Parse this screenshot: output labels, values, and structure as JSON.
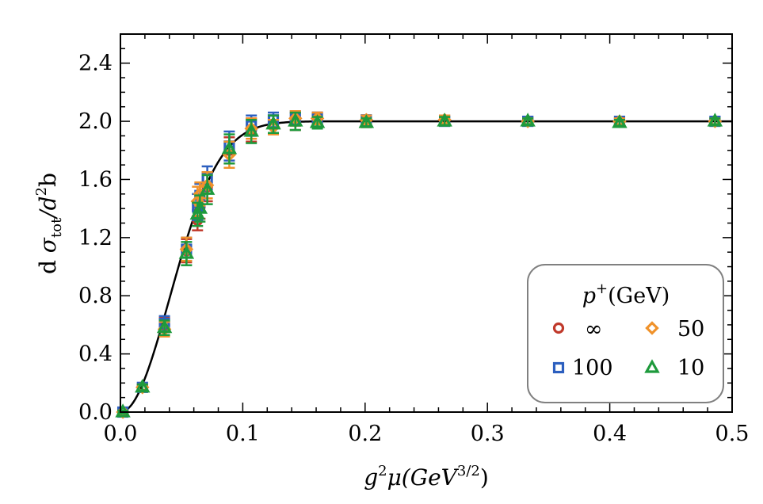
{
  "chart_data": {
    "type": "scatter",
    "xlabel": {
      "base": "g",
      "sup1": "2",
      "mid": "μ(GeV",
      "sup2": "3/2",
      "end": ")"
    },
    "ylabel": {
      "pre": "d ",
      "sigma": "σ",
      "sub": "tot",
      "slash": "/",
      "d": "d",
      "sup": "2",
      "post": "b"
    },
    "xlim": [
      0.0,
      0.5
    ],
    "ylim": [
      0.0,
      2.6
    ],
    "x_ticks": [
      0.0,
      0.1,
      0.2,
      0.3,
      0.4,
      0.5
    ],
    "x_tick_labels": [
      "0.0",
      "0.1",
      "0.2",
      "0.3",
      "0.4",
      "0.5"
    ],
    "y_ticks": [
      0.0,
      0.4,
      0.8,
      1.2,
      1.6,
      2.0,
      2.4
    ],
    "y_tick_labels": [
      "0.0",
      "0.4",
      "0.8",
      "1.2",
      "1.6",
      "2.0",
      "2.4"
    ],
    "grid": false,
    "legend": {
      "placement": "lower-right",
      "title": {
        "p": "p",
        "sup": "+",
        "rest": "(GeV)"
      },
      "entries": [
        {
          "label": "∞",
          "series": 0
        },
        {
          "label": "50",
          "series": 2
        },
        {
          "label": "100",
          "series": 1
        },
        {
          "label": "10",
          "series": 3
        }
      ]
    },
    "fit_curve": {
      "type": "gaussian-saturation",
      "saturation": 2.0,
      "scale": 0.057,
      "color": "#000000"
    },
    "series": [
      {
        "name": "∞",
        "marker": "circle",
        "color": "#c0392b",
        "points": [
          [
            0.002,
            0.0,
            0.01
          ],
          [
            0.018,
            0.17,
            0.02
          ],
          [
            0.036,
            0.6,
            0.05
          ],
          [
            0.054,
            1.11,
            0.08
          ],
          [
            0.063,
            1.32,
            0.07
          ],
          [
            0.065,
            1.41,
            0.08
          ],
          [
            0.071,
            1.55,
            0.1
          ],
          [
            0.089,
            1.8,
            0.09
          ],
          [
            0.107,
            1.94,
            0.08
          ],
          [
            0.125,
            1.98,
            0.06
          ],
          [
            0.143,
            2.0,
            0.06
          ],
          [
            0.161,
            2.01,
            0.05
          ],
          [
            0.201,
            2.0,
            0.04
          ],
          [
            0.265,
            2.01,
            0.03
          ],
          [
            0.333,
            2.0,
            0.03
          ],
          [
            0.408,
            2.0,
            0.02
          ],
          [
            0.486,
            2.0,
            0.02
          ]
        ]
      },
      {
        "name": "100",
        "marker": "square",
        "color": "#2c5fbf",
        "points": [
          [
            0.002,
            0.0,
            0.01
          ],
          [
            0.018,
            0.17,
            0.02
          ],
          [
            0.036,
            0.61,
            0.05
          ],
          [
            0.054,
            1.12,
            0.08
          ],
          [
            0.063,
            1.41,
            0.09
          ],
          [
            0.065,
            1.49,
            0.08
          ],
          [
            0.071,
            1.61,
            0.08
          ],
          [
            0.089,
            1.83,
            0.1
          ],
          [
            0.107,
            1.97,
            0.07
          ],
          [
            0.125,
            2.01,
            0.05
          ],
          [
            0.143,
            2.02,
            0.05
          ],
          [
            0.161,
            2.02,
            0.04
          ],
          [
            0.201,
            2.01,
            0.03
          ],
          [
            0.265,
            2.0,
            0.03
          ],
          [
            0.333,
            2.0,
            0.02
          ],
          [
            0.408,
            2.0,
            0.02
          ],
          [
            0.486,
            2.0,
            0.02
          ]
        ]
      },
      {
        "name": "50",
        "marker": "diamond",
        "color": "#f0922b",
        "points": [
          [
            0.002,
            0.0,
            0.01
          ],
          [
            0.018,
            0.17,
            0.02
          ],
          [
            0.036,
            0.57,
            0.05
          ],
          [
            0.054,
            1.12,
            0.08
          ],
          [
            0.063,
            1.45,
            0.1
          ],
          [
            0.065,
            1.5,
            0.08
          ],
          [
            0.071,
            1.56,
            0.09
          ],
          [
            0.089,
            1.77,
            0.09
          ],
          [
            0.107,
            1.95,
            0.07
          ],
          [
            0.125,
            1.96,
            0.05
          ],
          [
            0.143,
            2.02,
            0.05
          ],
          [
            0.161,
            2.02,
            0.04
          ],
          [
            0.201,
            2.01,
            0.03
          ],
          [
            0.265,
            2.01,
            0.03
          ],
          [
            0.333,
            2.0,
            0.02
          ],
          [
            0.408,
            2.0,
            0.02
          ],
          [
            0.486,
            2.0,
            0.02
          ]
        ]
      },
      {
        "name": "10",
        "marker": "triangle",
        "color": "#1e9a3c",
        "points": [
          [
            0.002,
            0.0,
            0.01
          ],
          [
            0.018,
            0.17,
            0.02
          ],
          [
            0.036,
            0.58,
            0.05
          ],
          [
            0.054,
            1.09,
            0.08
          ],
          [
            0.063,
            1.36,
            0.08
          ],
          [
            0.065,
            1.4,
            0.09
          ],
          [
            0.071,
            1.53,
            0.1
          ],
          [
            0.089,
            1.81,
            0.1
          ],
          [
            0.107,
            1.93,
            0.08
          ],
          [
            0.125,
            1.98,
            0.06
          ],
          [
            0.143,
            2.0,
            0.06
          ],
          [
            0.161,
            1.99,
            0.04
          ],
          [
            0.201,
            1.99,
            0.03
          ],
          [
            0.265,
            2.0,
            0.03
          ],
          [
            0.333,
            2.0,
            0.02
          ],
          [
            0.408,
            1.99,
            0.02
          ],
          [
            0.486,
            2.0,
            0.02
          ]
        ]
      }
    ]
  }
}
